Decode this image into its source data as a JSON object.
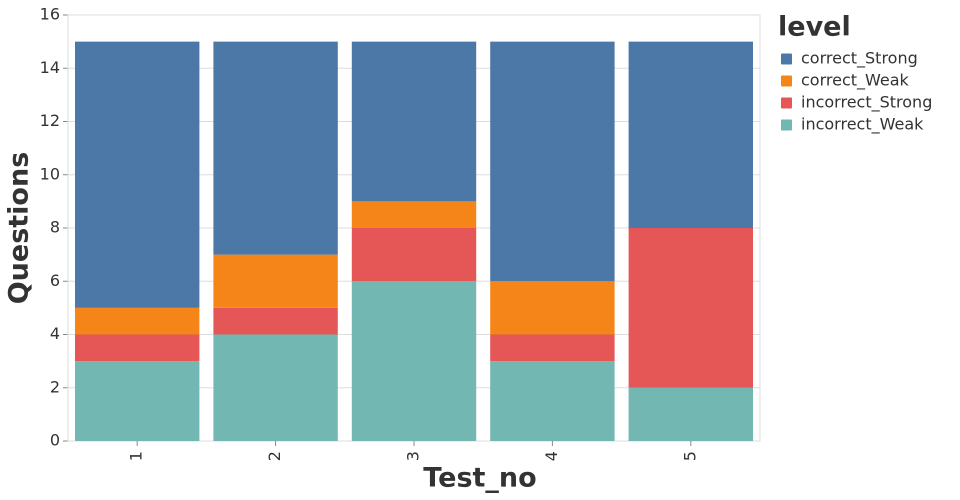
{
  "chart_data": {
    "type": "stacked_bar",
    "x_label": "Test_no",
    "y_label": "Questions",
    "legend_title": "level",
    "categories": [
      "1",
      "2",
      "3",
      "4",
      "5"
    ],
    "series": [
      {
        "name": "correct_Strong",
        "color": "#4c78a8",
        "values": [
          10,
          8,
          6,
          9,
          7
        ]
      },
      {
        "name": "correct_Weak",
        "color": "#f58518",
        "values": [
          1,
          2,
          1,
          2,
          0
        ]
      },
      {
        "name": "incorrect_Strong",
        "color": "#e45756",
        "values": [
          1,
          1,
          2,
          1,
          6
        ]
      },
      {
        "name": "incorrect_Weak",
        "color": "#72b7b2",
        "values": [
          3,
          4,
          6,
          3,
          2
        ]
      }
    ],
    "ylim": [
      0,
      16
    ],
    "yticks": [
      0,
      2,
      4,
      6,
      8,
      10,
      12,
      14,
      16
    ],
    "grid": true,
    "legend": "right"
  }
}
